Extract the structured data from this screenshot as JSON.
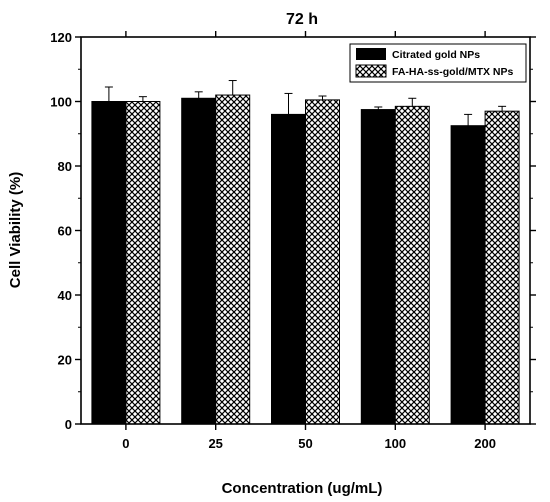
{
  "chart_data": {
    "type": "bar",
    "title": "72 h",
    "xlabel": "Concentration (ug/mL)",
    "ylabel": "Cell Viability (%)",
    "categories": [
      "0",
      "25",
      "50",
      "100",
      "200"
    ],
    "ylim": [
      0,
      120
    ],
    "yticks": [
      0,
      20,
      40,
      60,
      80,
      100,
      120
    ],
    "series": [
      {
        "name": "Citrated gold NPs",
        "values": [
          100.0,
          101.0,
          96.0,
          97.5,
          92.5
        ],
        "errors": [
          4.5,
          2.0,
          6.5,
          0.8,
          3.5
        ],
        "color": "#000000",
        "pattern": "solid"
      },
      {
        "name": "FA-HA-ss-gold/MTX NPs",
        "values": [
          100.0,
          102.0,
          100.5,
          98.5,
          97.0
        ],
        "errors": [
          1.5,
          4.5,
          1.2,
          2.5,
          1.5
        ],
        "color": "#000000",
        "pattern": "crosshatch"
      }
    ],
    "legend_position": "top-right",
    "grid": false
  }
}
